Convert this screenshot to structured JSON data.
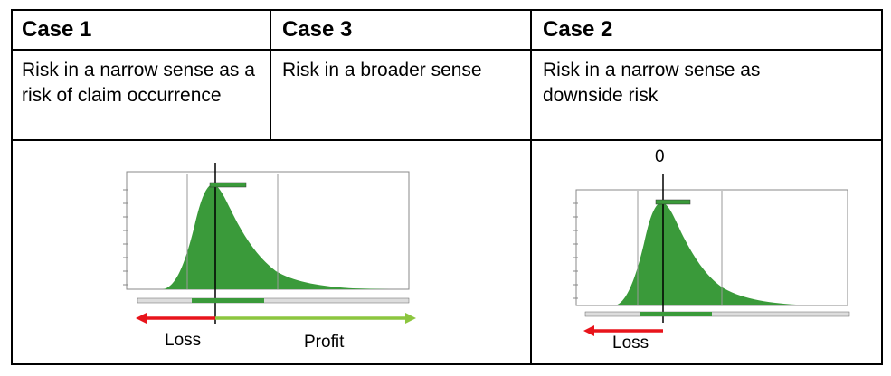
{
  "table": {
    "headers": [
      "Case 1",
      "Case 3",
      "Case 2"
    ],
    "descriptions": [
      "Risk in a narrow sense as a risk of claim occurrence",
      "Risk in a broader sense",
      "Risk in a narrow sense as downside risk"
    ]
  },
  "figures": {
    "left": {
      "loss_label": "Loss",
      "profit_label": "Profit",
      "loss_color": "#e8141b",
      "profit_color": "#8cc63f",
      "fill_color": "#3a9a3a"
    },
    "right": {
      "zero_label": "0",
      "loss_label": "Loss",
      "loss_color": "#e8141b",
      "fill_color": "#3a9a3a"
    }
  }
}
